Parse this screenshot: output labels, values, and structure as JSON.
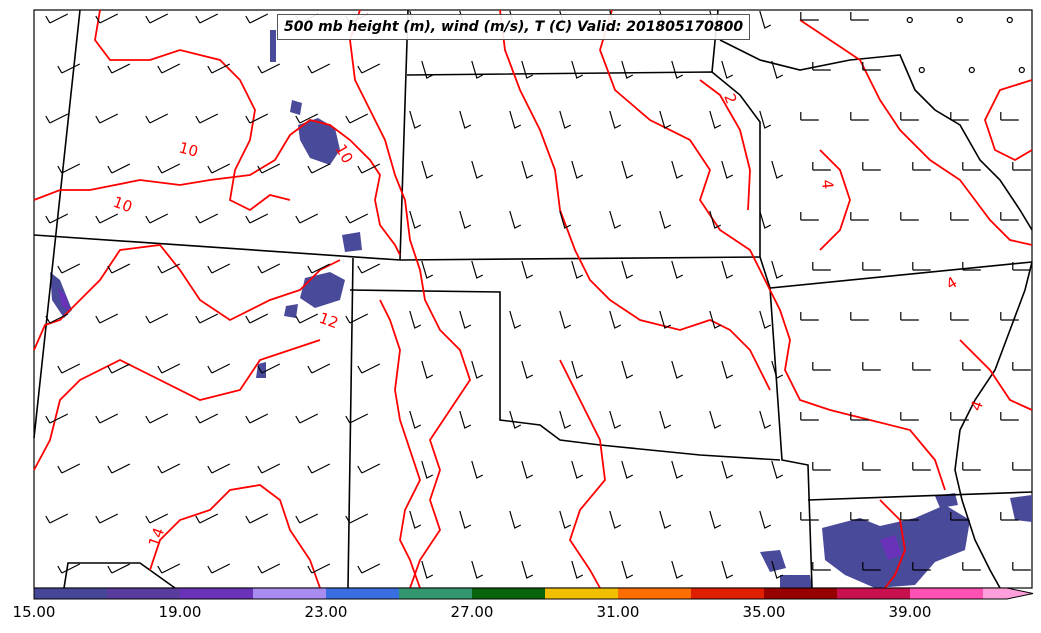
{
  "map": {
    "title": "500 mb height (m), wind (m/s), T (C) Valid: 201805170800",
    "contour_labels": [
      "10",
      "10",
      "10",
      "12",
      "14",
      "2",
      "4",
      "4",
      "4"
    ],
    "colors": {
      "contour": "#ff0000",
      "boundary": "#000000",
      "barb": "#000000",
      "shade_low": "#4a4a9a"
    }
  },
  "colorbar": {
    "tick_labels": [
      "15.00",
      "19.00",
      "23.00",
      "27.00",
      "31.00",
      "35.00",
      "39.00"
    ],
    "colors": [
      "#464696",
      "#5a3c9e",
      "#6a32b8",
      "#a88cf0",
      "#3a6ee0",
      "#32966e",
      "#08640a",
      "#f0c000",
      "#ff6e00",
      "#e01e00",
      "#960000",
      "#c8104e",
      "#ff50b4",
      "#ffa0dc"
    ]
  }
}
